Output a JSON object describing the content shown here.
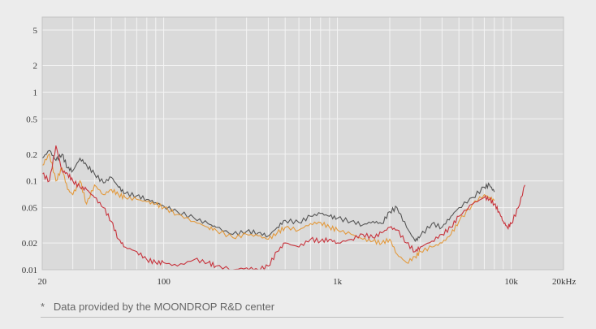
{
  "chart_data": {
    "type": "line",
    "title": "",
    "xlabel": "",
    "ylabel": "",
    "x_scale": "log",
    "y_scale": "log",
    "xlim": [
      20,
      20000
    ],
    "ylim": [
      0.01,
      7
    ],
    "grid": true,
    "y_ticks": [
      {
        "value": 5,
        "label": "5"
      },
      {
        "value": 2,
        "label": "2"
      },
      {
        "value": 1,
        "label": "1"
      },
      {
        "value": 0.5,
        "label": "0.5"
      },
      {
        "value": 0.2,
        "label": "0.2"
      },
      {
        "value": 0.1,
        "label": "0.1"
      },
      {
        "value": 0.05,
        "label": "0.05"
      },
      {
        "value": 0.02,
        "label": "0.02"
      },
      {
        "value": 0.01,
        "label": "0.01"
      }
    ],
    "x_ticks": [
      {
        "value": 20,
        "label": "20"
      },
      {
        "value": 100,
        "label": "100"
      },
      {
        "value": 1000,
        "label": "1k"
      },
      {
        "value": 10000,
        "label": "10k"
      },
      {
        "value": 20000,
        "label": "20kHz"
      }
    ],
    "series": [
      {
        "color": "#555555",
        "x": [
          20,
          22,
          24,
          26,
          28,
          30,
          33,
          36,
          40,
          45,
          50,
          55,
          60,
          70,
          80,
          90,
          100,
          120,
          150,
          180,
          200,
          250,
          300,
          350,
          400,
          450,
          500,
          600,
          700,
          800,
          900,
          1000,
          1200,
          1400,
          1600,
          1800,
          2000,
          2200,
          2500,
          2800,
          3000,
          3500,
          4000,
          4500,
          5000,
          6000,
          7000,
          7500,
          8000
        ],
        "y": [
          0.18,
          0.22,
          0.17,
          0.2,
          0.14,
          0.13,
          0.18,
          0.15,
          0.12,
          0.095,
          0.11,
          0.085,
          0.072,
          0.068,
          0.062,
          0.057,
          0.052,
          0.045,
          0.038,
          0.033,
          0.03,
          0.025,
          0.027,
          0.026,
          0.024,
          0.03,
          0.036,
          0.034,
          0.04,
          0.043,
          0.04,
          0.038,
          0.035,
          0.032,
          0.035,
          0.033,
          0.045,
          0.05,
          0.03,
          0.021,
          0.024,
          0.033,
          0.03,
          0.04,
          0.05,
          0.065,
          0.085,
          0.09,
          0.075
        ]
      },
      {
        "color": "#e39a3d",
        "x": [
          20,
          22,
          24,
          26,
          28,
          30,
          33,
          36,
          40,
          45,
          50,
          55,
          60,
          70,
          80,
          90,
          100,
          120,
          150,
          180,
          200,
          250,
          300,
          350,
          400,
          450,
          500,
          600,
          700,
          800,
          900,
          1000,
          1200,
          1400,
          1600,
          1800,
          2000,
          2200,
          2500,
          2800,
          3000,
          3500,
          4000,
          4500,
          5000,
          6000,
          7000,
          7500,
          8000
        ],
        "y": [
          0.15,
          0.2,
          0.1,
          0.14,
          0.08,
          0.07,
          0.1,
          0.055,
          0.09,
          0.07,
          0.08,
          0.07,
          0.065,
          0.062,
          0.058,
          0.055,
          0.05,
          0.042,
          0.035,
          0.03,
          0.028,
          0.023,
          0.025,
          0.024,
          0.022,
          0.026,
          0.03,
          0.028,
          0.033,
          0.034,
          0.03,
          0.028,
          0.025,
          0.022,
          0.021,
          0.02,
          0.022,
          0.015,
          0.012,
          0.014,
          0.016,
          0.018,
          0.02,
          0.025,
          0.035,
          0.055,
          0.07,
          0.065,
          0.06
        ]
      },
      {
        "color": "#c8333c",
        "x": [
          20,
          22,
          24,
          26,
          28,
          30,
          33,
          36,
          40,
          45,
          50,
          55,
          60,
          70,
          80,
          90,
          100,
          120,
          150,
          180,
          200,
          250,
          300,
          350,
          400,
          450,
          500,
          600,
          700,
          800,
          900,
          1000,
          1200,
          1400,
          1600,
          1800,
          2000,
          2200,
          2500,
          2800,
          3000,
          3500,
          4000,
          4500,
          5000,
          6000,
          7000,
          7500,
          8000,
          8500,
          9000,
          9500,
          10000,
          11000,
          12000
        ],
        "y": [
          0.12,
          0.1,
          0.25,
          0.13,
          0.12,
          0.1,
          0.085,
          0.08,
          0.065,
          0.05,
          0.035,
          0.022,
          0.018,
          0.016,
          0.013,
          0.012,
          0.012,
          0.011,
          0.013,
          0.012,
          0.011,
          0.01,
          0.0105,
          0.01,
          0.011,
          0.016,
          0.02,
          0.018,
          0.022,
          0.021,
          0.022,
          0.02,
          0.022,
          0.025,
          0.023,
          0.026,
          0.03,
          0.028,
          0.02,
          0.016,
          0.018,
          0.021,
          0.025,
          0.03,
          0.04,
          0.055,
          0.065,
          0.062,
          0.055,
          0.045,
          0.035,
          0.03,
          0.033,
          0.05,
          0.09
        ]
      }
    ]
  },
  "footnote": {
    "bullet": "*",
    "text": "Data provided by the MOONDROP R&D center"
  }
}
